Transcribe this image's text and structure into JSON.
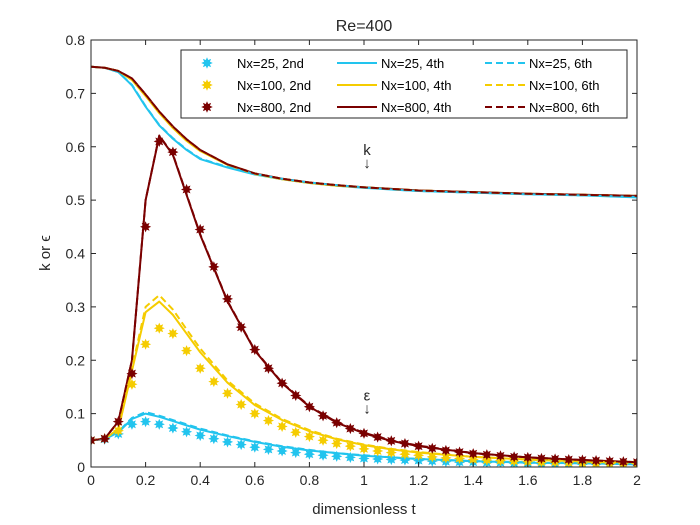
{
  "chart_data": {
    "type": "line",
    "title": "Re=400",
    "xlabel": "dimensionless t",
    "ylabel": "k or ϵ",
    "xlim": [
      0,
      2
    ],
    "ylim": [
      0,
      0.8
    ],
    "xticks": [
      "0",
      "0.2",
      "0.4",
      "0.6",
      "0.8",
      "1",
      "1.2",
      "1.4",
      "1.6",
      "1.8",
      "2"
    ],
    "yticks": [
      "0",
      "0.1",
      "0.2",
      "0.3",
      "0.4",
      "0.5",
      "0.6",
      "0.7",
      "0.8"
    ],
    "grid": false,
    "legend_position": "top-right",
    "legend_columns": 3,
    "colors": {
      "Nx25": "#22c4ee",
      "Nx100": "#f5cc00",
      "Nx800": "#7a0000",
      "axis": "#262626"
    },
    "annotations": [
      {
        "text": "k",
        "x": 1.0,
        "y": 0.585
      },
      {
        "text": "↓",
        "x": 1.0,
        "y": 0.56
      },
      {
        "text": "ε",
        "x": 1.0,
        "y": 0.125
      },
      {
        "text": "↓",
        "x": 1.0,
        "y": 0.1
      }
    ],
    "series": [
      {
        "name": "Nx=25, 2nd",
        "kind": "marker",
        "color": "#22c4ee",
        "x": [
          0,
          0.05,
          0.1,
          0.15,
          0.2,
          0.25,
          0.3,
          0.35,
          0.4,
          0.45,
          0.5,
          0.55,
          0.6,
          0.65,
          0.7,
          0.75,
          0.8,
          0.85,
          0.9,
          0.95,
          1.0,
          1.05,
          1.1,
          1.15,
          1.2,
          1.25,
          1.3,
          1.35,
          1.4,
          1.45,
          1.5,
          1.55,
          1.6,
          1.65,
          1.7,
          1.75,
          1.8,
          1.85,
          1.9,
          1.95,
          2.0
        ],
        "y": [
          0.05,
          0.052,
          0.062,
          0.08,
          0.085,
          0.08,
          0.073,
          0.066,
          0.059,
          0.053,
          0.047,
          0.042,
          0.037,
          0.033,
          0.03,
          0.027,
          0.024,
          0.022,
          0.02,
          0.018,
          0.016,
          0.015,
          0.014,
          0.013,
          0.012,
          0.011,
          0.01,
          0.009,
          0.009,
          0.008,
          0.008,
          0.007,
          0.007,
          0.006,
          0.006,
          0.006,
          0.005,
          0.005,
          0.005,
          0.005,
          0.004
        ]
      },
      {
        "name": "Nx=100, 2nd",
        "kind": "marker",
        "color": "#f5cc00",
        "x": [
          0,
          0.05,
          0.1,
          0.15,
          0.2,
          0.25,
          0.3,
          0.35,
          0.4,
          0.45,
          0.5,
          0.55,
          0.6,
          0.65,
          0.7,
          0.75,
          0.8,
          0.85,
          0.9,
          0.95,
          1.0,
          1.05,
          1.1,
          1.15,
          1.2,
          1.25,
          1.3,
          1.35,
          1.4,
          1.45,
          1.5,
          1.55,
          1.6,
          1.65,
          1.7,
          1.75,
          1.8,
          1.85,
          1.9,
          1.95,
          2.0
        ],
        "y": [
          0.05,
          0.053,
          0.068,
          0.155,
          0.23,
          0.26,
          0.25,
          0.218,
          0.185,
          0.16,
          0.138,
          0.117,
          0.1,
          0.087,
          0.076,
          0.065,
          0.057,
          0.05,
          0.044,
          0.039,
          0.034,
          0.03,
          0.027,
          0.024,
          0.022,
          0.019,
          0.017,
          0.016,
          0.014,
          0.013,
          0.012,
          0.011,
          0.01,
          0.009,
          0.009,
          0.008,
          0.007,
          0.007,
          0.006,
          0.006,
          0.006
        ]
      },
      {
        "name": "Nx=800, 2nd",
        "kind": "marker",
        "color": "#7a0000",
        "x": [
          0,
          0.05,
          0.1,
          0.15,
          0.2,
          0.25,
          0.3,
          0.35,
          0.4,
          0.45,
          0.5,
          0.55,
          0.6,
          0.65,
          0.7,
          0.75,
          0.8,
          0.85,
          0.9,
          0.95,
          1.0,
          1.05,
          1.1,
          1.15,
          1.2,
          1.25,
          1.3,
          1.35,
          1.4,
          1.45,
          1.5,
          1.55,
          1.6,
          1.65,
          1.7,
          1.75,
          1.8,
          1.85,
          1.9,
          1.95,
          2.0
        ],
        "y": [
          0.05,
          0.053,
          0.085,
          0.175,
          0.45,
          0.61,
          0.59,
          0.52,
          0.445,
          0.375,
          0.315,
          0.262,
          0.22,
          0.185,
          0.157,
          0.134,
          0.113,
          0.096,
          0.083,
          0.072,
          0.063,
          0.056,
          0.049,
          0.044,
          0.039,
          0.035,
          0.031,
          0.028,
          0.025,
          0.023,
          0.021,
          0.019,
          0.018,
          0.016,
          0.015,
          0.014,
          0.013,
          0.012,
          0.011,
          0.01,
          0.009
        ]
      },
      {
        "name": "Nx=25, 4th",
        "kind": "solid",
        "color": "#22c4ee",
        "x": [
          0,
          0.05,
          0.1,
          0.15,
          0.2,
          0.25,
          0.3,
          0.35,
          0.4,
          0.5,
          0.6,
          0.7,
          0.8,
          0.9,
          1.0,
          1.1,
          1.2,
          1.4,
          1.6,
          1.8,
          2.0
        ],
        "y": [
          0.05,
          0.052,
          0.065,
          0.09,
          0.1,
          0.094,
          0.086,
          0.078,
          0.07,
          0.058,
          0.047,
          0.038,
          0.031,
          0.026,
          0.021,
          0.018,
          0.015,
          0.011,
          0.008,
          0.007,
          0.005
        ],
        "k_y": [
          0.75,
          0.748,
          0.74,
          0.715,
          0.675,
          0.64,
          0.615,
          0.594,
          0.577,
          0.561,
          0.548,
          0.539,
          0.532,
          0.527,
          0.523,
          0.52,
          0.517,
          0.514,
          0.511,
          0.509,
          0.505
        ]
      },
      {
        "name": "Nx=100, 4th",
        "kind": "solid",
        "color": "#f5cc00",
        "x": [
          0,
          0.05,
          0.1,
          0.15,
          0.2,
          0.25,
          0.3,
          0.35,
          0.4,
          0.5,
          0.6,
          0.7,
          0.8,
          0.9,
          1.0,
          1.1,
          1.2,
          1.4,
          1.6,
          1.8,
          2.0
        ],
        "y": [
          0.05,
          0.053,
          0.07,
          0.18,
          0.29,
          0.31,
          0.285,
          0.25,
          0.215,
          0.158,
          0.116,
          0.088,
          0.067,
          0.052,
          0.041,
          0.033,
          0.027,
          0.019,
          0.014,
          0.01,
          0.008
        ],
        "k_y": [
          0.75,
          0.748,
          0.742,
          0.725,
          0.695,
          0.663,
          0.635,
          0.611,
          0.592,
          0.566,
          0.549,
          0.539,
          0.532,
          0.527,
          0.524,
          0.521,
          0.518,
          0.515,
          0.512,
          0.51,
          0.508
        ]
      },
      {
        "name": "Nx=800, 4th",
        "kind": "solid",
        "color": "#7a0000",
        "x": [
          0,
          0.05,
          0.1,
          0.15,
          0.2,
          0.25,
          0.3,
          0.35,
          0.4,
          0.5,
          0.6,
          0.7,
          0.8,
          0.9,
          1.0,
          1.1,
          1.2,
          1.4,
          1.6,
          1.8,
          2.0
        ],
        "y": [
          0.05,
          0.053,
          0.085,
          0.2,
          0.5,
          0.62,
          0.585,
          0.51,
          0.435,
          0.31,
          0.218,
          0.157,
          0.113,
          0.083,
          0.063,
          0.049,
          0.039,
          0.026,
          0.018,
          0.013,
          0.009
        ],
        "k_y": [
          0.75,
          0.748,
          0.742,
          0.728,
          0.698,
          0.666,
          0.638,
          0.614,
          0.594,
          0.567,
          0.55,
          0.54,
          0.533,
          0.528,
          0.524,
          0.521,
          0.518,
          0.515,
          0.512,
          0.51,
          0.508
        ]
      },
      {
        "name": "Nx=25, 6th",
        "kind": "dashed",
        "color": "#22c4ee",
        "x": [
          0,
          0.05,
          0.1,
          0.15,
          0.2,
          0.25,
          0.3,
          0.35,
          0.4,
          0.5,
          0.6,
          0.7,
          0.8,
          0.9,
          1.0,
          1.1,
          1.2,
          1.4,
          1.6,
          1.8,
          2.0
        ],
        "y": [
          0.05,
          0.052,
          0.066,
          0.092,
          0.103,
          0.096,
          0.088,
          0.08,
          0.072,
          0.059,
          0.048,
          0.039,
          0.032,
          0.026,
          0.022,
          0.018,
          0.015,
          0.011,
          0.009,
          0.007,
          0.005
        ],
        "k_y": [
          0.75,
          0.748,
          0.74,
          0.716,
          0.676,
          0.641,
          0.616,
          0.595,
          0.578,
          0.562,
          0.549,
          0.54,
          0.533,
          0.528,
          0.524,
          0.52,
          0.517,
          0.514,
          0.511,
          0.509,
          0.506
        ]
      },
      {
        "name": "Nx=100, 6th",
        "kind": "dashed",
        "color": "#f5cc00",
        "x": [
          0,
          0.05,
          0.1,
          0.15,
          0.2,
          0.25,
          0.3,
          0.35,
          0.4,
          0.5,
          0.6,
          0.7,
          0.8,
          0.9,
          1.0,
          1.1,
          1.2,
          1.4,
          1.6,
          1.8,
          2.0
        ],
        "y": [
          0.05,
          0.053,
          0.071,
          0.185,
          0.3,
          0.322,
          0.295,
          0.258,
          0.222,
          0.162,
          0.119,
          0.09,
          0.069,
          0.053,
          0.042,
          0.034,
          0.028,
          0.019,
          0.014,
          0.01,
          0.008
        ],
        "k_y": [
          0.75,
          0.748,
          0.742,
          0.726,
          0.696,
          0.664,
          0.636,
          0.612,
          0.593,
          0.567,
          0.55,
          0.54,
          0.533,
          0.528,
          0.524,
          0.521,
          0.518,
          0.515,
          0.512,
          0.51,
          0.508
        ]
      },
      {
        "name": "Nx=800, 6th",
        "kind": "dashed",
        "color": "#7a0000",
        "x": [
          0,
          0.05,
          0.1,
          0.15,
          0.2,
          0.25,
          0.3,
          0.35,
          0.4,
          0.5,
          0.6,
          0.7,
          0.8,
          0.9,
          1.0,
          1.1,
          1.2,
          1.4,
          1.6,
          1.8,
          2.0
        ],
        "y": [
          0.05,
          0.053,
          0.085,
          0.2,
          0.5,
          0.621,
          0.586,
          0.511,
          0.436,
          0.311,
          0.219,
          0.158,
          0.114,
          0.084,
          0.064,
          0.05,
          0.04,
          0.026,
          0.018,
          0.013,
          0.009
        ],
        "k_y": [
          0.75,
          0.748,
          0.742,
          0.728,
          0.698,
          0.666,
          0.638,
          0.614,
          0.594,
          0.567,
          0.55,
          0.54,
          0.533,
          0.528,
          0.524,
          0.521,
          0.518,
          0.515,
          0.512,
          0.51,
          0.508
        ]
      }
    ]
  }
}
